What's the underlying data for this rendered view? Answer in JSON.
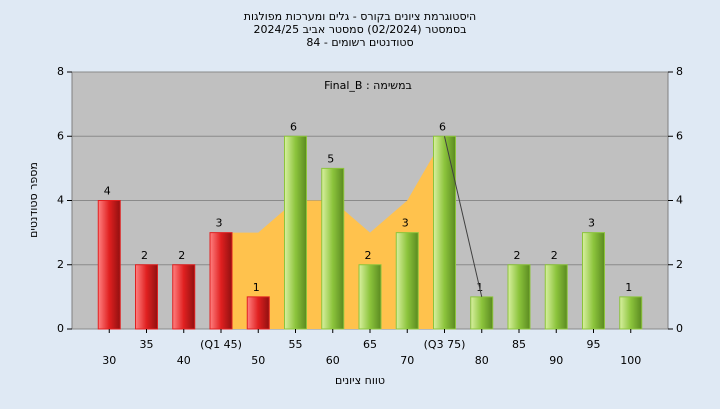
{
  "chart_data": {
    "type": "bar",
    "title": [
      "היסטוגרמת ציונים בקורס - גלים ומערכות מפולגות",
      "בסמסטר  (02/2024)  סמסטר אביב 2024/25",
      "סטודנטים רשומים - 84"
    ],
    "annotation": "Final_B : במשימה",
    "x_label": "טווח ציונים",
    "y_label": "מספר סטודנטים",
    "categories": [
      "30",
      "35",
      "40",
      "(Q1 45)",
      "50",
      "55",
      "60",
      "65",
      "70",
      "(Q3 75)",
      "80",
      "85",
      "90",
      "95",
      "100"
    ],
    "values": [
      4,
      2,
      2,
      3,
      1,
      6,
      5,
      2,
      3,
      6,
      1,
      2,
      2,
      3,
      1
    ],
    "colors": [
      "#e02020",
      "#e02020",
      "#e02020",
      "#e02020",
      "#e02020",
      "#8cc43c",
      "#8cc43c",
      "#8cc43c",
      "#8cc43c",
      "#8cc43c",
      "#8cc43c",
      "#8cc43c",
      "#8cc43c",
      "#8cc43c",
      "#8cc43c"
    ],
    "area": {
      "color": "#ffc24d",
      "values": [
        null,
        null,
        null,
        3,
        3,
        4,
        4,
        3,
        4,
        6,
        null,
        null,
        null,
        null,
        null
      ]
    },
    "line": {
      "color": "#404040",
      "values": [
        null,
        null,
        null,
        null,
        null,
        null,
        null,
        null,
        null,
        6,
        1,
        null,
        null,
        null,
        null
      ]
    },
    "ylim": [
      0,
      8
    ],
    "yticks": [
      0,
      2,
      4,
      6,
      8
    ],
    "y2lim": [
      0,
      8
    ],
    "y2ticks": [
      0,
      2,
      4,
      6,
      8
    ],
    "grid": true
  }
}
